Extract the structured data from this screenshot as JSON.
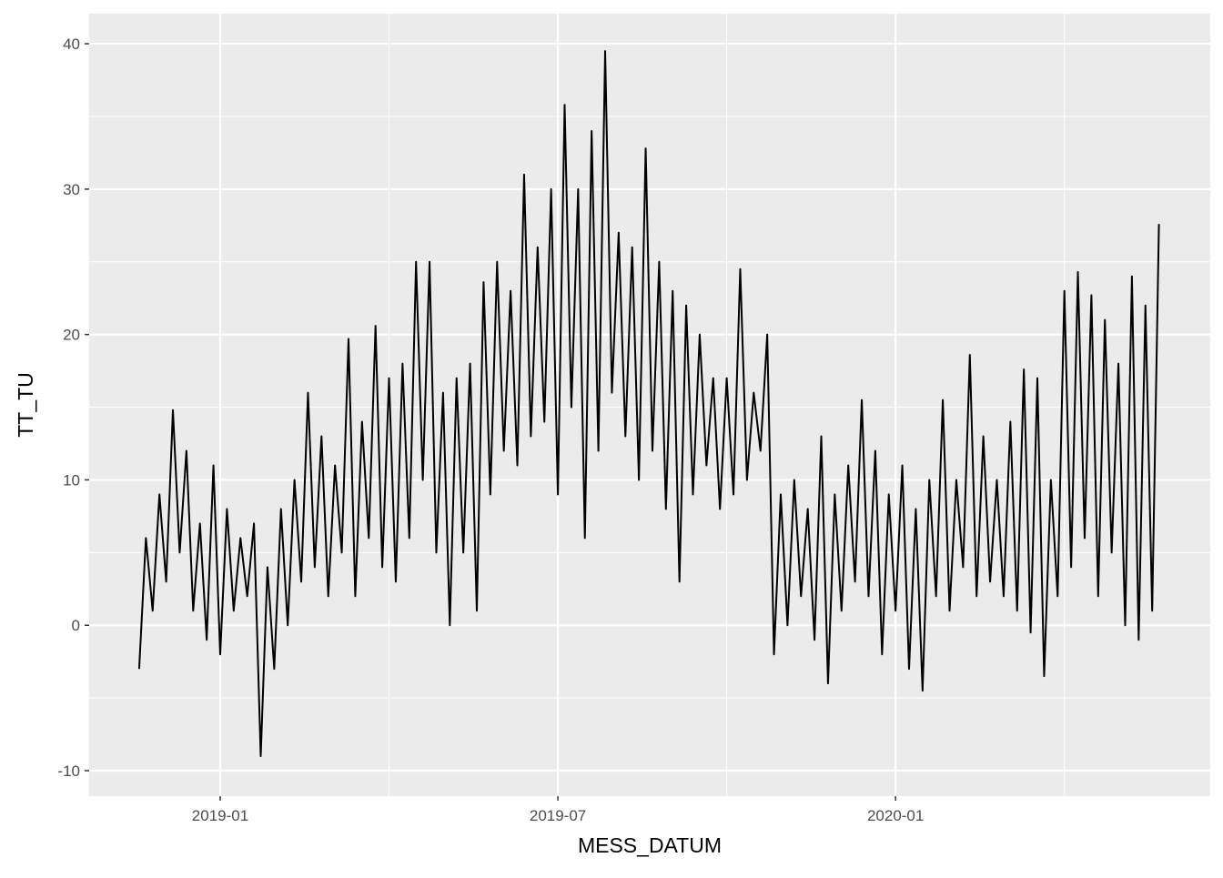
{
  "chart_data": {
    "type": "line",
    "x_label": "MESS_DATUM",
    "y_label": "TT_TU",
    "xlim": [
      2018.806,
      2020.466
    ],
    "ylim": [
      -11.75,
      42.07
    ],
    "xticks": [
      {
        "value": 2019.0,
        "label": "2019-01"
      },
      {
        "value": 2019.5,
        "label": "2019-07"
      },
      {
        "value": 2020.0,
        "label": "2020-01"
      }
    ],
    "yticks": [
      -10,
      0,
      10,
      20,
      30,
      40
    ],
    "x_minor_breaks": [
      2019.25,
      2019.75,
      2020.25
    ],
    "y_minor_breaks": [
      -5,
      5,
      15,
      25,
      35
    ],
    "grid": true,
    "series": [
      {
        "color": "#000000",
        "x": [
          2018.88,
          2018.89,
          2018.9,
          2018.91,
          2018.92,
          2018.93,
          2018.94,
          2018.95,
          2018.96,
          2018.97,
          2018.98,
          2018.99,
          2019.0,
          2019.01,
          2019.02,
          2019.03,
          2019.04,
          2019.05,
          2019.06,
          2019.07,
          2019.08,
          2019.09,
          2019.1,
          2019.11,
          2019.12,
          2019.13,
          2019.14,
          2019.15,
          2019.16,
          2019.17,
          2019.18,
          2019.19,
          2019.2,
          2019.21,
          2019.22,
          2019.23,
          2019.24,
          2019.25,
          2019.26,
          2019.27,
          2019.28,
          2019.29,
          2019.3,
          2019.31,
          2019.32,
          2019.33,
          2019.34,
          2019.35,
          2019.36,
          2019.37,
          2019.38,
          2019.39,
          2019.4,
          2019.41,
          2019.42,
          2019.43,
          2019.44,
          2019.45,
          2019.46,
          2019.47,
          2019.48,
          2019.49,
          2019.5,
          2019.51,
          2019.52,
          2019.53,
          2019.54,
          2019.55,
          2019.56,
          2019.57,
          2019.58,
          2019.59,
          2019.6,
          2019.61,
          2019.62,
          2019.63,
          2019.64,
          2019.65,
          2019.66,
          2019.67,
          2019.68,
          2019.69,
          2019.7,
          2019.71,
          2019.72,
          2019.73,
          2019.74,
          2019.75,
          2019.76,
          2019.77,
          2019.78,
          2019.79,
          2019.8,
          2019.81,
          2019.82,
          2019.83,
          2019.84,
          2019.85,
          2019.86,
          2019.87,
          2019.88,
          2019.89,
          2019.9,
          2019.91,
          2019.92,
          2019.93,
          2019.94,
          2019.95,
          2019.96,
          2019.97,
          2019.98,
          2019.99,
          2020.0,
          2020.01,
          2020.02,
          2020.03,
          2020.04,
          2020.05,
          2020.06,
          2020.07,
          2020.08,
          2020.09,
          2020.1,
          2020.11,
          2020.12,
          2020.13,
          2020.14,
          2020.15,
          2020.16,
          2020.17,
          2020.18,
          2020.19,
          2020.2,
          2020.21,
          2020.22,
          2020.23,
          2020.24,
          2020.25,
          2020.26,
          2020.27,
          2020.28,
          2020.29,
          2020.3,
          2020.31,
          2020.32,
          2020.33,
          2020.34,
          2020.35,
          2020.36,
          2020.37,
          2020.38,
          2020.39
        ],
        "values": [
          -3,
          6,
          1,
          9,
          3,
          14.8,
          5,
          12,
          1,
          7,
          -1,
          11,
          -2,
          8,
          1,
          6,
          2,
          7,
          -9,
          4,
          -3,
          8,
          0,
          10,
          3,
          16,
          4,
          13,
          2,
          11,
          5,
          19.7,
          2,
          14,
          6,
          20.6,
          4,
          17,
          3,
          18,
          6,
          25,
          10,
          25,
          5,
          16,
          0,
          17,
          5,
          18,
          1,
          23.6,
          9,
          25,
          12,
          23,
          11,
          31,
          13,
          26,
          14,
          30,
          9,
          35.8,
          15,
          30,
          6,
          34,
          12,
          39.5,
          16,
          27,
          13,
          26,
          10,
          32.8,
          12,
          25,
          8,
          23,
          3,
          22,
          9,
          20,
          11,
          17,
          8,
          17,
          9,
          24.5,
          10,
          16,
          12,
          20,
          -2,
          9,
          0,
          10,
          2,
          8,
          -1,
          13,
          -4,
          9,
          1,
          11,
          3,
          15.5,
          2,
          12,
          -2,
          9,
          1,
          11,
          -3,
          8,
          -4.5,
          10,
          2,
          15.5,
          1,
          10,
          4,
          18.6,
          2,
          13,
          3,
          10,
          2,
          14,
          1,
          17.6,
          -0.5,
          17,
          -3.5,
          10,
          2,
          23,
          4,
          24.3,
          6,
          22.7,
          2,
          21,
          5,
          18,
          0,
          24,
          -1,
          22,
          1,
          27.6
        ]
      }
    ]
  }
}
